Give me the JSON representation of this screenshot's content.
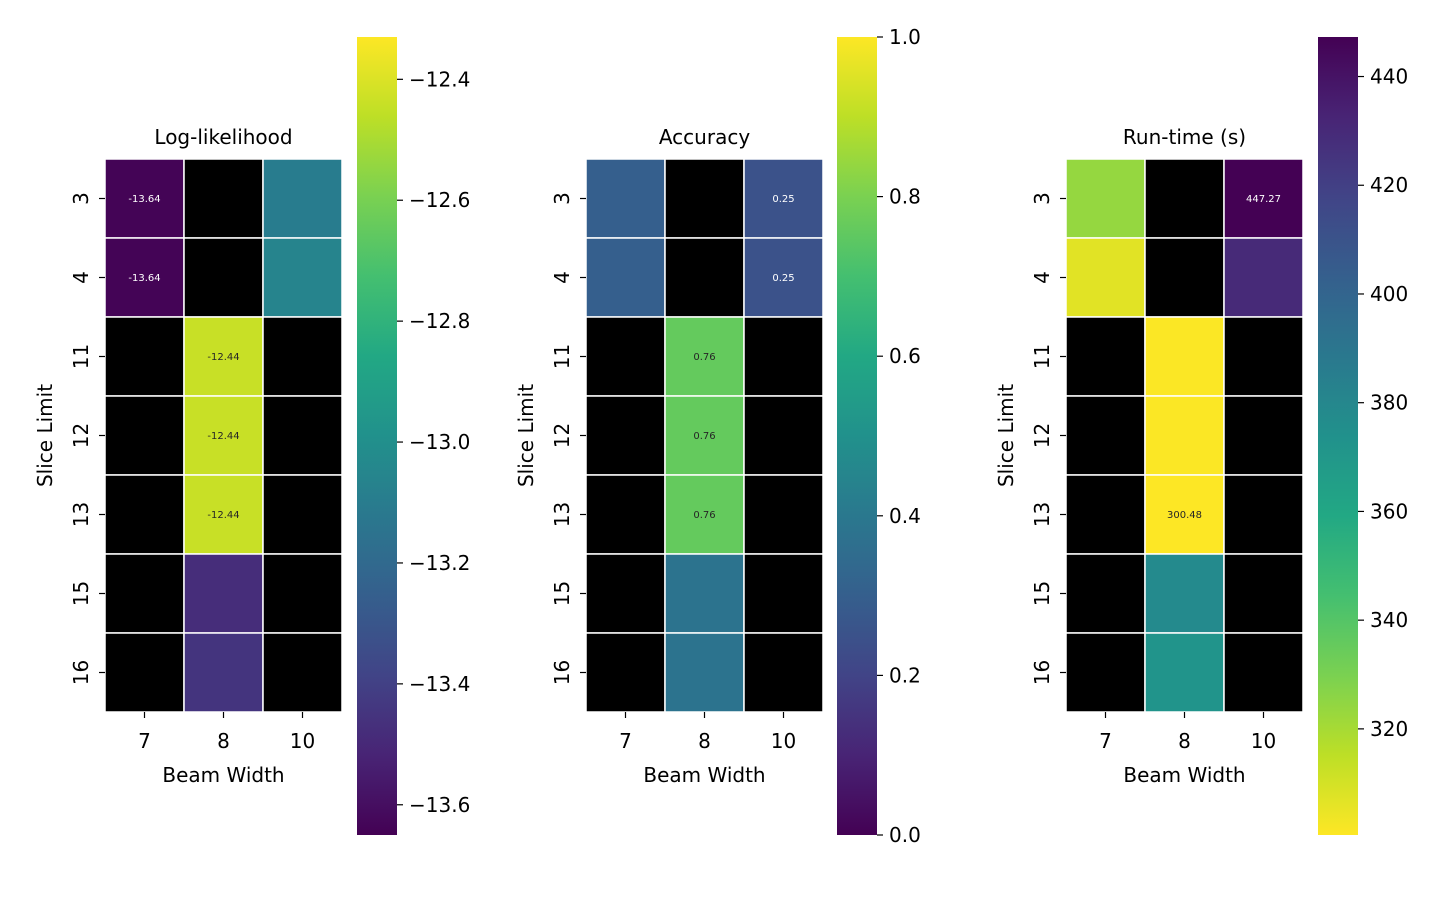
{
  "chart_data": [
    {
      "type": "heatmap",
      "title": "Log-likelihood",
      "xlabel": "Beam Width",
      "ylabel": "Slice Limit",
      "x_categories": [
        "7",
        "8",
        "10"
      ],
      "y_categories": [
        "3",
        "4",
        "11",
        "12",
        "13",
        "15",
        "16"
      ],
      "values": [
        [
          -13.64,
          null,
          -13.1
        ],
        [
          -13.64,
          null,
          -13.06
        ],
        [
          null,
          -12.44,
          null
        ],
        [
          null,
          -12.44,
          null
        ],
        [
          null,
          -12.44,
          null
        ],
        [
          null,
          -13.48,
          null
        ],
        [
          null,
          -13.45,
          null
        ]
      ],
      "cell_labels": [
        [
          "-13.64",
          "",
          ""
        ],
        [
          "-13.64",
          "",
          ""
        ],
        [
          "",
          "-12.44",
          ""
        ],
        [
          "",
          "-12.44",
          ""
        ],
        [
          "",
          "-12.44",
          ""
        ],
        [
          "",
          "",
          ""
        ],
        [
          "",
          "",
          ""
        ]
      ],
      "missing_color": "#000000",
      "colormap": "viridis",
      "colorbar": {
        "range": [
          -13.65,
          -12.33
        ],
        "ticks": [
          -12.4,
          -12.6,
          -12.8,
          -13.0,
          -13.2,
          -13.4,
          -13.6
        ],
        "tick_labels": [
          "−12.4",
          "−12.6",
          "−12.8",
          "−13.0",
          "−13.2",
          "−13.4",
          "−13.6"
        ]
      }
    },
    {
      "type": "heatmap",
      "title": "Accuracy",
      "xlabel": "Beam Width",
      "ylabel": "Slice Limit",
      "x_categories": [
        "7",
        "8",
        "10"
      ],
      "y_categories": [
        "3",
        "4",
        "11",
        "12",
        "13",
        "15",
        "16"
      ],
      "values": [
        [
          0.3,
          null,
          0.25
        ],
        [
          0.3,
          null,
          0.25
        ],
        [
          null,
          0.76,
          null
        ],
        [
          null,
          0.76,
          null
        ],
        [
          null,
          0.76,
          null
        ],
        [
          null,
          0.38,
          null
        ],
        [
          null,
          0.38,
          null
        ]
      ],
      "cell_labels": [
        [
          "",
          "",
          "0.25"
        ],
        [
          "",
          "",
          "0.25"
        ],
        [
          "",
          "0.76",
          ""
        ],
        [
          "",
          "0.76",
          ""
        ],
        [
          "",
          "0.76",
          ""
        ],
        [
          "",
          "",
          ""
        ],
        [
          "",
          "",
          ""
        ]
      ],
      "missing_color": "#000000",
      "colormap": "viridis",
      "colorbar": {
        "range": [
          0.0,
          1.0
        ],
        "ticks": [
          1.0,
          0.8,
          0.6,
          0.4,
          0.2,
          0.0
        ],
        "tick_labels": [
          "1.0",
          "0.8",
          "0.6",
          "0.4",
          "0.2",
          "0.0"
        ]
      }
    },
    {
      "type": "heatmap",
      "title": "Run-time (s)",
      "xlabel": "Beam Width",
      "ylabel": "Slice Limit",
      "x_categories": [
        "7",
        "8",
        "10"
      ],
      "y_categories": [
        "3",
        "4",
        "11",
        "12",
        "13",
        "15",
        "16"
      ],
      "values": [
        [
          324,
          null,
          447.27
        ],
        [
          307,
          null,
          430
        ],
        [
          null,
          301,
          null
        ],
        [
          null,
          301,
          null
        ],
        [
          null,
          300.48,
          null
        ],
        [
          null,
          378,
          null
        ],
        [
          null,
          372,
          null
        ]
      ],
      "cell_labels": [
        [
          "",
          "",
          "447.27"
        ],
        [
          "",
          "",
          ""
        ],
        [
          "",
          "",
          ""
        ],
        [
          "",
          "",
          ""
        ],
        [
          "",
          "300.48",
          ""
        ],
        [
          "",
          "",
          ""
        ],
        [
          "",
          "",
          ""
        ]
      ],
      "missing_color": "#000000",
      "colormap": "viridis_r",
      "colorbar": {
        "range": [
          300.48,
          447.27
        ],
        "ticks": [
          440,
          420,
          400,
          380,
          360,
          340,
          320
        ],
        "tick_labels": [
          "440",
          "420",
          "400",
          "380",
          "360",
          "340",
          "320"
        ]
      }
    }
  ]
}
